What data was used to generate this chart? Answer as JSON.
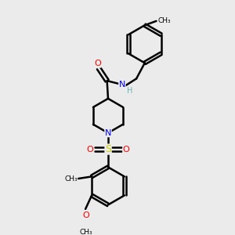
{
  "bg_color": "#ebebeb",
  "bond_color": "#000000",
  "bond_width": 1.8,
  "atom_colors": {
    "C": "#000000",
    "H": "#6ab5b5",
    "N": "#0000ff",
    "O": "#ff0000",
    "S": "#cccc00"
  },
  "figsize": [
    3.0,
    3.0
  ],
  "dpi": 100,
  "xlim": [
    0,
    10
  ],
  "ylim": [
    0,
    10
  ]
}
